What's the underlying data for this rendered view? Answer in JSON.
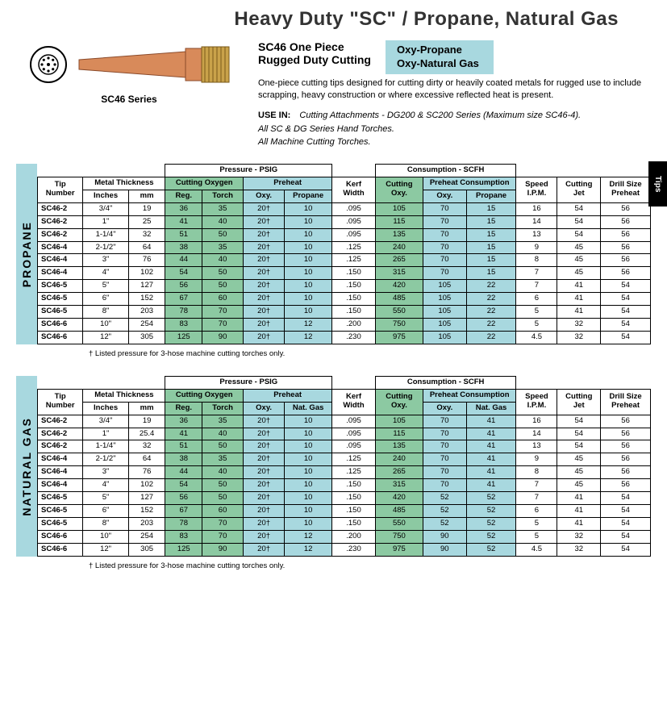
{
  "page": {
    "title": "Heavy Duty \"SC\" / Propane, Natural Gas",
    "side_tab": "Tips"
  },
  "intro": {
    "series_label": "SC46  Series",
    "heading_line1": "SC46 One Piece",
    "heading_line2": "Rugged Duty Cutting",
    "badge": "Oxy-Propane\nOxy-Natural Gas",
    "body": "One-piece cutting tips designed for cutting dirty or heavily coated metals for rugged use to include scrapping, heavy construction or where excessive reflected heat is present.",
    "use_in_label": "USE IN:",
    "use_in_text": "Cutting Attachments - DG200 & SC200 Series (Maximum size SC46-4).\nAll SC & DG Series Hand Torches.\nAll Machine Cutting Torches."
  },
  "colors": {
    "accent_blue": "#a8d8df",
    "accent_green": "#8cc9a2",
    "tip_copper": "#d88a5a",
    "tip_brass": "#c9a24a"
  },
  "header": {
    "pressure_group": "Pressure - PSIG",
    "consumption_group": "Consumption - SCFH",
    "tip_number": "Tip Number",
    "metal_thickness": "Metal Thickness",
    "inches": "Inches",
    "mm": "mm",
    "cutting_oxygen": "Cutting Oxygen",
    "reg": "Reg.",
    "torch": "Torch",
    "preheat": "Preheat",
    "oxy": "Oxy.",
    "propane": "Propane",
    "natgas": "Nat. Gas",
    "kerf_width": "Kerf Width",
    "cutting_oxy": "Cutting Oxy.",
    "preheat_consumption": "Preheat Consumption",
    "speed": "Speed I.P.M.",
    "cutting_jet": "Cutting Jet",
    "drill_size": "Drill Size Preheat"
  },
  "footnote": "† Listed pressure for 3-hose machine cutting torches only.",
  "tables": [
    {
      "label": "PROPANE",
      "gas_col": "Propane",
      "gas_key": "propane",
      "rows": [
        {
          "tip": "SC46-2",
          "in": "3/4\"",
          "mm": "19",
          "reg": "36",
          "torch": "35",
          "poxy": "20†",
          "pgas": "10",
          "kerf": ".095",
          "coxy": "105",
          "phoxy": "70",
          "phgas": "15",
          "speed": "16",
          "jet": "54",
          "drill": "56"
        },
        {
          "tip": "SC46-2",
          "in": "1\"",
          "mm": "25",
          "reg": "41",
          "torch": "40",
          "poxy": "20†",
          "pgas": "10",
          "kerf": ".095",
          "coxy": "115",
          "phoxy": "70",
          "phgas": "15",
          "speed": "14",
          "jet": "54",
          "drill": "56"
        },
        {
          "tip": "SC46-2",
          "in": "1-1/4\"",
          "mm": "32",
          "reg": "51",
          "torch": "50",
          "poxy": "20†",
          "pgas": "10",
          "kerf": ".095",
          "coxy": "135",
          "phoxy": "70",
          "phgas": "15",
          "speed": "13",
          "jet": "54",
          "drill": "56"
        },
        {
          "tip": "SC46-4",
          "in": "2-1/2\"",
          "mm": "64",
          "reg": "38",
          "torch": "35",
          "poxy": "20†",
          "pgas": "10",
          "kerf": ".125",
          "coxy": "240",
          "phoxy": "70",
          "phgas": "15",
          "speed": "9",
          "jet": "45",
          "drill": "56"
        },
        {
          "tip": "SC46-4",
          "in": "3\"",
          "mm": "76",
          "reg": "44",
          "torch": "40",
          "poxy": "20†",
          "pgas": "10",
          "kerf": ".125",
          "coxy": "265",
          "phoxy": "70",
          "phgas": "15",
          "speed": "8",
          "jet": "45",
          "drill": "56"
        },
        {
          "tip": "SC46-4",
          "in": "4\"",
          "mm": "102",
          "reg": "54",
          "torch": "50",
          "poxy": "20†",
          "pgas": "10",
          "kerf": ".150",
          "coxy": "315",
          "phoxy": "70",
          "phgas": "15",
          "speed": "7",
          "jet": "45",
          "drill": "56"
        },
        {
          "tip": "SC46-5",
          "in": "5\"",
          "mm": "127",
          "reg": "56",
          "torch": "50",
          "poxy": "20†",
          "pgas": "10",
          "kerf": ".150",
          "coxy": "420",
          "phoxy": "105",
          "phgas": "22",
          "speed": "7",
          "jet": "41",
          "drill": "54"
        },
        {
          "tip": "SC46-5",
          "in": "6\"",
          "mm": "152",
          "reg": "67",
          "torch": "60",
          "poxy": "20†",
          "pgas": "10",
          "kerf": ".150",
          "coxy": "485",
          "phoxy": "105",
          "phgas": "22",
          "speed": "6",
          "jet": "41",
          "drill": "54"
        },
        {
          "tip": "SC46-5",
          "in": "8\"",
          "mm": "203",
          "reg": "78",
          "torch": "70",
          "poxy": "20†",
          "pgas": "10",
          "kerf": ".150",
          "coxy": "550",
          "phoxy": "105",
          "phgas": "22",
          "speed": "5",
          "jet": "41",
          "drill": "54"
        },
        {
          "tip": "SC46-6",
          "in": "10\"",
          "mm": "254",
          "reg": "83",
          "torch": "70",
          "poxy": "20†",
          "pgas": "12",
          "kerf": ".200",
          "coxy": "750",
          "phoxy": "105",
          "phgas": "22",
          "speed": "5",
          "jet": "32",
          "drill": "54"
        },
        {
          "tip": "SC46-6",
          "in": "12\"",
          "mm": "305",
          "reg": "125",
          "torch": "90",
          "poxy": "20†",
          "pgas": "12",
          "kerf": ".230",
          "coxy": "975",
          "phoxy": "105",
          "phgas": "22",
          "speed": "4.5",
          "jet": "32",
          "drill": "54"
        }
      ]
    },
    {
      "label": "NATURAL GAS",
      "gas_col": "Nat. Gas",
      "gas_key": "natgas",
      "rows": [
        {
          "tip": "SC46-2",
          "in": "3/4\"",
          "mm": "19",
          "reg": "36",
          "torch": "35",
          "poxy": "20†",
          "pgas": "10",
          "kerf": ".095",
          "coxy": "105",
          "phoxy": "70",
          "phgas": "41",
          "speed": "16",
          "jet": "54",
          "drill": "56"
        },
        {
          "tip": "SC46-2",
          "in": "1\"",
          "mm": "25.4",
          "reg": "41",
          "torch": "40",
          "poxy": "20†",
          "pgas": "10",
          "kerf": ".095",
          "coxy": "115",
          "phoxy": "70",
          "phgas": "41",
          "speed": "14",
          "jet": "54",
          "drill": "56"
        },
        {
          "tip": "SC46-2",
          "in": "1-1/4\"",
          "mm": "32",
          "reg": "51",
          "torch": "50",
          "poxy": "20†",
          "pgas": "10",
          "kerf": ".095",
          "coxy": "135",
          "phoxy": "70",
          "phgas": "41",
          "speed": "13",
          "jet": "54",
          "drill": "56"
        },
        {
          "tip": "SC46-4",
          "in": "2-1/2\"",
          "mm": "64",
          "reg": "38",
          "torch": "35",
          "poxy": "20†",
          "pgas": "10",
          "kerf": ".125",
          "coxy": "240",
          "phoxy": "70",
          "phgas": "41",
          "speed": "9",
          "jet": "45",
          "drill": "56"
        },
        {
          "tip": "SC46-4",
          "in": "3\"",
          "mm": "76",
          "reg": "44",
          "torch": "40",
          "poxy": "20†",
          "pgas": "10",
          "kerf": ".125",
          "coxy": "265",
          "phoxy": "70",
          "phgas": "41",
          "speed": "8",
          "jet": "45",
          "drill": "56"
        },
        {
          "tip": "SC46-4",
          "in": "4\"",
          "mm": "102",
          "reg": "54",
          "torch": "50",
          "poxy": "20†",
          "pgas": "10",
          "kerf": ".150",
          "coxy": "315",
          "phoxy": "70",
          "phgas": "41",
          "speed": "7",
          "jet": "45",
          "drill": "56"
        },
        {
          "tip": "SC46-5",
          "in": "5\"",
          "mm": "127",
          "reg": "56",
          "torch": "50",
          "poxy": "20†",
          "pgas": "10",
          "kerf": ".150",
          "coxy": "420",
          "phoxy": "52",
          "phgas": "52",
          "speed": "7",
          "jet": "41",
          "drill": "54"
        },
        {
          "tip": "SC46-5",
          "in": "6\"",
          "mm": "152",
          "reg": "67",
          "torch": "60",
          "poxy": "20†",
          "pgas": "10",
          "kerf": ".150",
          "coxy": "485",
          "phoxy": "52",
          "phgas": "52",
          "speed": "6",
          "jet": "41",
          "drill": "54"
        },
        {
          "tip": "SC46-5",
          "in": "8\"",
          "mm": "203",
          "reg": "78",
          "torch": "70",
          "poxy": "20†",
          "pgas": "10",
          "kerf": ".150",
          "coxy": "550",
          "phoxy": "52",
          "phgas": "52",
          "speed": "5",
          "jet": "41",
          "drill": "54"
        },
        {
          "tip": "SC46-6",
          "in": "10\"",
          "mm": "254",
          "reg": "83",
          "torch": "70",
          "poxy": "20†",
          "pgas": "12",
          "kerf": ".200",
          "coxy": "750",
          "phoxy": "90",
          "phgas": "52",
          "speed": "5",
          "jet": "32",
          "drill": "54"
        },
        {
          "tip": "SC46-6",
          "in": "12\"",
          "mm": "305",
          "reg": "125",
          "torch": "90",
          "poxy": "20†",
          "pgas": "12",
          "kerf": ".230",
          "coxy": "975",
          "phoxy": "90",
          "phgas": "52",
          "speed": "4.5",
          "jet": "32",
          "drill": "54"
        }
      ]
    }
  ]
}
